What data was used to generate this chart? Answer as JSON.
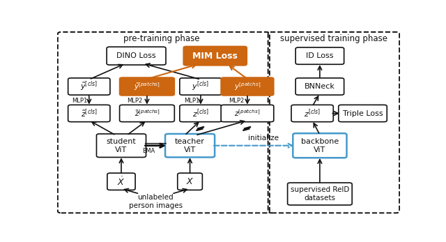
{
  "fig_width": 6.4,
  "fig_height": 3.47,
  "dpi": 100,
  "bg_color": "#ffffff",
  "orange_fill": "#cc6611",
  "orange_edge": "#cc6611",
  "blue_edge": "#4499cc",
  "black": "#111111",
  "white": "#ffffff",
  "pre_label": "pre-training phase",
  "sup_label": "supervised training phase",
  "init_label": "initialize",
  "ema_label": "EMA"
}
